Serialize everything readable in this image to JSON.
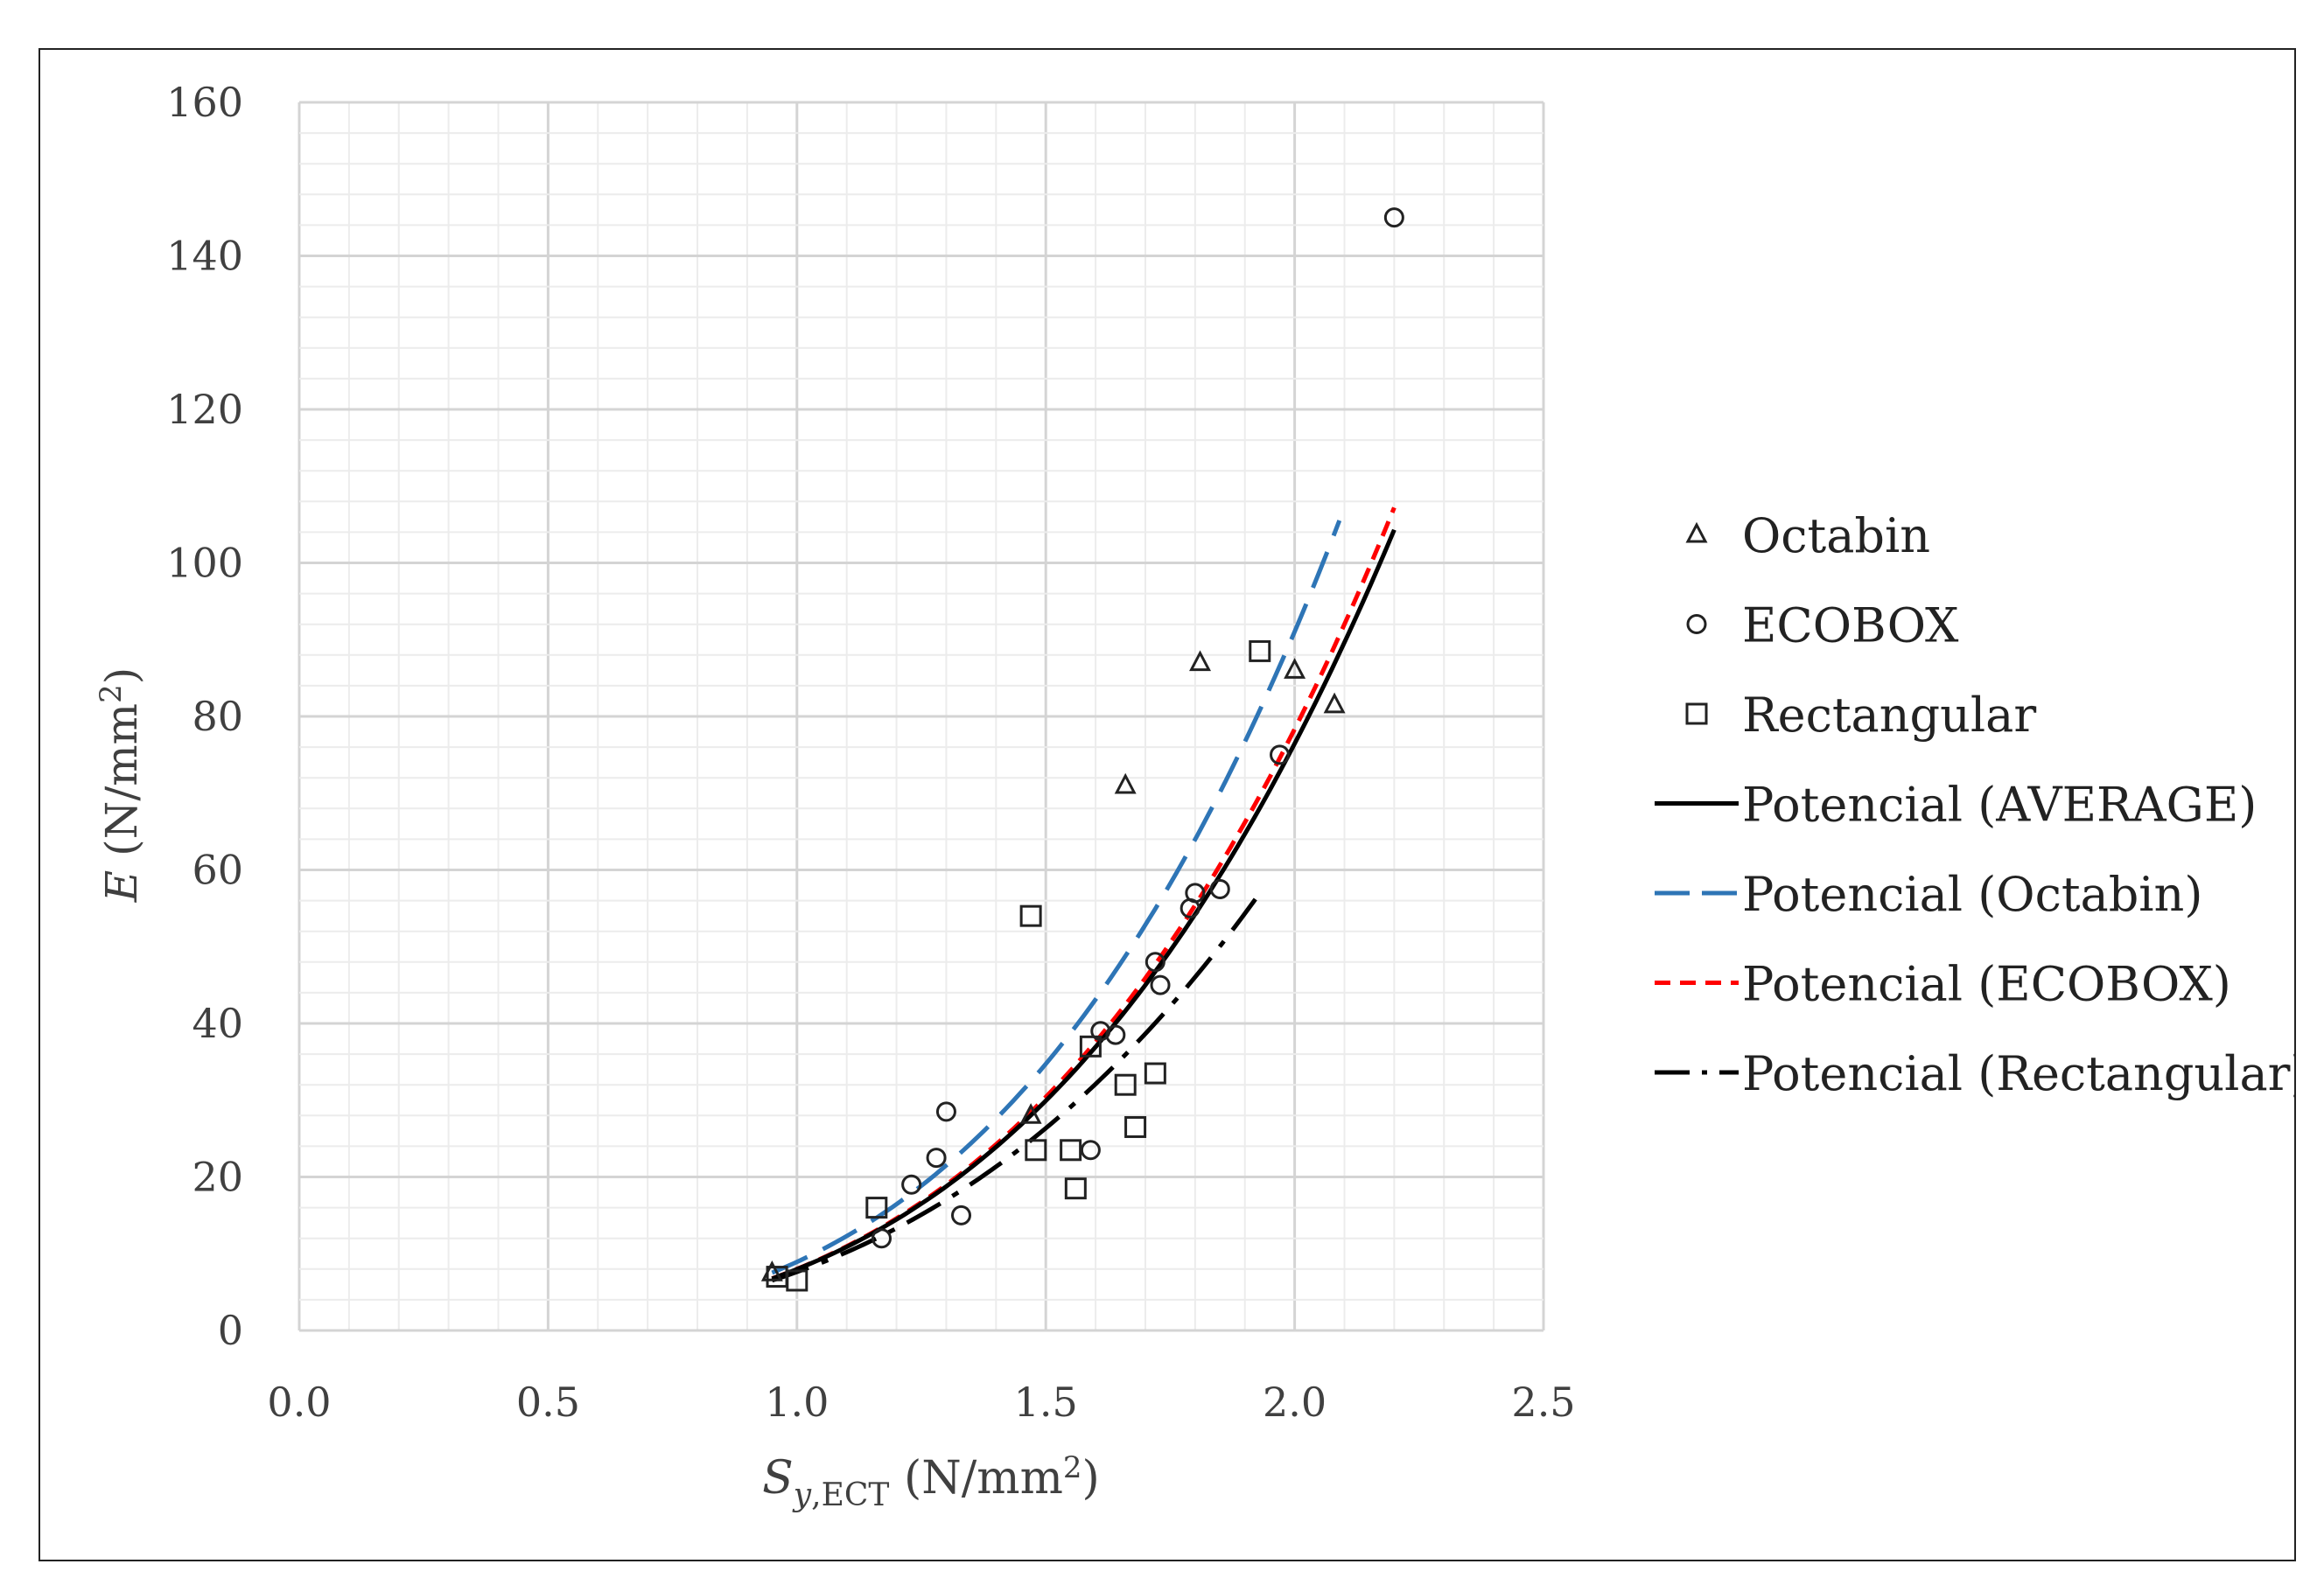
{
  "chart_data": {
    "type": "scatter",
    "title": "",
    "xlabel": {
      "main": "S",
      "sub_italic": "y",
      "sub_roman": ",ECT",
      "unit_pre": "(N/mm",
      "unit_sup": "2",
      "unit_post": ")"
    },
    "ylabel": {
      "main": "E",
      "unit_pre": "(N/mm",
      "unit_sup": "2",
      "unit_post": ")"
    },
    "xlim": [
      0,
      2.5
    ],
    "ylim": [
      0,
      160
    ],
    "x_ticks": [
      "0.0",
      "0.5",
      "1.0",
      "1.5",
      "2.0",
      "2.5"
    ],
    "y_ticks": [
      "0",
      "20",
      "40",
      "60",
      "80",
      "100",
      "120",
      "140",
      "160"
    ],
    "grid": true,
    "legend_position": "right",
    "series": [
      {
        "name": "Octabin",
        "kind": "scatter",
        "marker": "triangle",
        "points": [
          [
            0.95,
            7.5
          ],
          [
            1.47,
            28
          ],
          [
            1.66,
            71
          ],
          [
            1.81,
            87
          ],
          [
            2.0,
            86
          ],
          [
            2.08,
            81.5
          ]
        ]
      },
      {
        "name": "ECOBOX",
        "kind": "scatter",
        "marker": "circle",
        "points": [
          [
            1.17,
            12
          ],
          [
            1.23,
            19
          ],
          [
            1.28,
            22.5
          ],
          [
            1.3,
            28.5
          ],
          [
            1.33,
            15
          ],
          [
            1.59,
            23.5
          ],
          [
            1.61,
            39
          ],
          [
            1.64,
            38.5
          ],
          [
            1.72,
            48
          ],
          [
            1.73,
            45
          ],
          [
            1.79,
            55
          ],
          [
            1.8,
            57
          ],
          [
            1.85,
            57.5
          ],
          [
            1.97,
            75
          ],
          [
            2.2,
            145
          ]
        ]
      },
      {
        "name": "Rectangular",
        "kind": "scatter",
        "marker": "square",
        "points": [
          [
            0.96,
            7
          ],
          [
            1.0,
            6.5
          ],
          [
            1.16,
            16
          ],
          [
            1.47,
            54
          ],
          [
            1.48,
            23.5
          ],
          [
            1.55,
            23.5
          ],
          [
            1.56,
            18.5
          ],
          [
            1.59,
            37
          ],
          [
            1.66,
            32
          ],
          [
            1.68,
            26.5
          ],
          [
            1.72,
            33.5
          ],
          [
            1.93,
            88.5
          ]
        ]
      },
      {
        "name": "Potencial (AVERAGE)",
        "kind": "trendline",
        "color": "#000000",
        "dash": "solid",
        "coef": 7.98,
        "exp": 3.26,
        "x_range": [
          0.95,
          2.2
        ]
      },
      {
        "name": "Potencial (Octabin)",
        "kind": "trendline",
        "color": "#2E75B6",
        "dash": "long-dash",
        "coef": 8.93,
        "exp": 3.35,
        "x_range": [
          0.95,
          2.09
        ]
      },
      {
        "name": "Potencial (ECOBOX)",
        "kind": "trendline",
        "color": "#FF0000",
        "dash": "short-dash",
        "coef": 8.01,
        "exp": 3.29,
        "x_range": [
          0.95,
          2.2
        ]
      },
      {
        "name": "Potencial (Rectangular)",
        "kind": "trendline",
        "color": "#000000",
        "dash": "long-dash-dot",
        "coef": 7.62,
        "exp": 3.06,
        "x_range": [
          0.95,
          1.93
        ]
      }
    ]
  }
}
